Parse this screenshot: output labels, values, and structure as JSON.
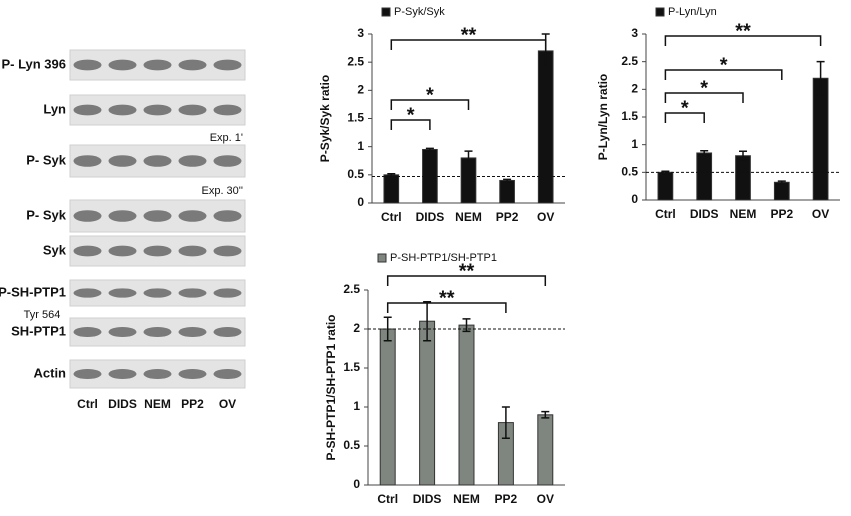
{
  "blot": {
    "rows": [
      "P- Lyn 396",
      "Lyn",
      "P- Syk",
      "P- Syk",
      "Syk",
      "P-SH-PTP1",
      "SH-PTP1",
      "Actin"
    ],
    "sublabel": "Tyr 564",
    "exposures": [
      "Exp. 1'",
      "Exp. 30''"
    ],
    "lanes": [
      "Ctrl",
      "DIDS",
      "NEM",
      "PP2",
      "OV"
    ]
  },
  "chart_data": [
    {
      "type": "bar",
      "ylabel": "P-Syk/Syk ratio",
      "categories": [
        "Ctrl",
        "DIDS",
        "NEM",
        "PP2",
        "OV"
      ],
      "series": [
        {
          "name": "P-Syk/Syk",
          "color": "#111111",
          "values": [
            0.5,
            0.95,
            0.8,
            0.4,
            2.7
          ],
          "errors": [
            0.02,
            0.02,
            0.12,
            0.02,
            0.3
          ]
        }
      ],
      "ylim": [
        0,
        3
      ],
      "yticks": [
        0,
        0.5,
        1,
        1.5,
        2,
        2.5,
        3
      ],
      "reference_line": 0.47,
      "annotations": [
        {
          "label": "*",
          "from": 0,
          "to": 1
        },
        {
          "label": "*",
          "from": 0,
          "to": 2
        },
        {
          "label": "**",
          "from": 0,
          "to": 4
        }
      ]
    },
    {
      "type": "bar",
      "ylabel": "P-Lyn/Lyn  ratio",
      "categories": [
        "Ctrl",
        "DIDS",
        "NEM",
        "PP2",
        "OV"
      ],
      "series": [
        {
          "name": "P-Lyn/Lyn",
          "color": "#111111",
          "values": [
            0.5,
            0.85,
            0.8,
            0.32,
            2.2
          ],
          "errors": [
            0.02,
            0.04,
            0.08,
            0.02,
            0.3
          ]
        }
      ],
      "ylim": [
        0,
        3
      ],
      "yticks": [
        0,
        0.5,
        1,
        1.5,
        2,
        2.5,
        3
      ],
      "reference_line": 0.5,
      "annotations": [
        {
          "label": "*",
          "from": 0,
          "to": 1
        },
        {
          "label": "*",
          "from": 0,
          "to": 2
        },
        {
          "label": "*",
          "from": 0,
          "to": 3
        },
        {
          "label": "**",
          "from": 0,
          "to": 4
        }
      ]
    },
    {
      "type": "bar",
      "ylabel": "P-SH-PTP1/SH-PTP1  ratio",
      "categories": [
        "Ctrl",
        "DIDS",
        "NEM",
        "PP2",
        "OV"
      ],
      "series": [
        {
          "name": "P-SH-PTP1/SH-PTP1",
          "color": "#7f8680",
          "values": [
            2.0,
            2.1,
            2.05,
            0.8,
            0.9
          ],
          "errors": [
            0.15,
            0.25,
            0.08,
            0.2,
            0.04
          ]
        }
      ],
      "ylim": [
        0,
        2.5
      ],
      "yticks": [
        0,
        0.5,
        1,
        1.5,
        2,
        2.5
      ],
      "reference_line": 2,
      "annotations": [
        {
          "label": "**",
          "from": 0,
          "to": 3
        },
        {
          "label": "**",
          "from": 0,
          "to": 4
        }
      ]
    }
  ]
}
